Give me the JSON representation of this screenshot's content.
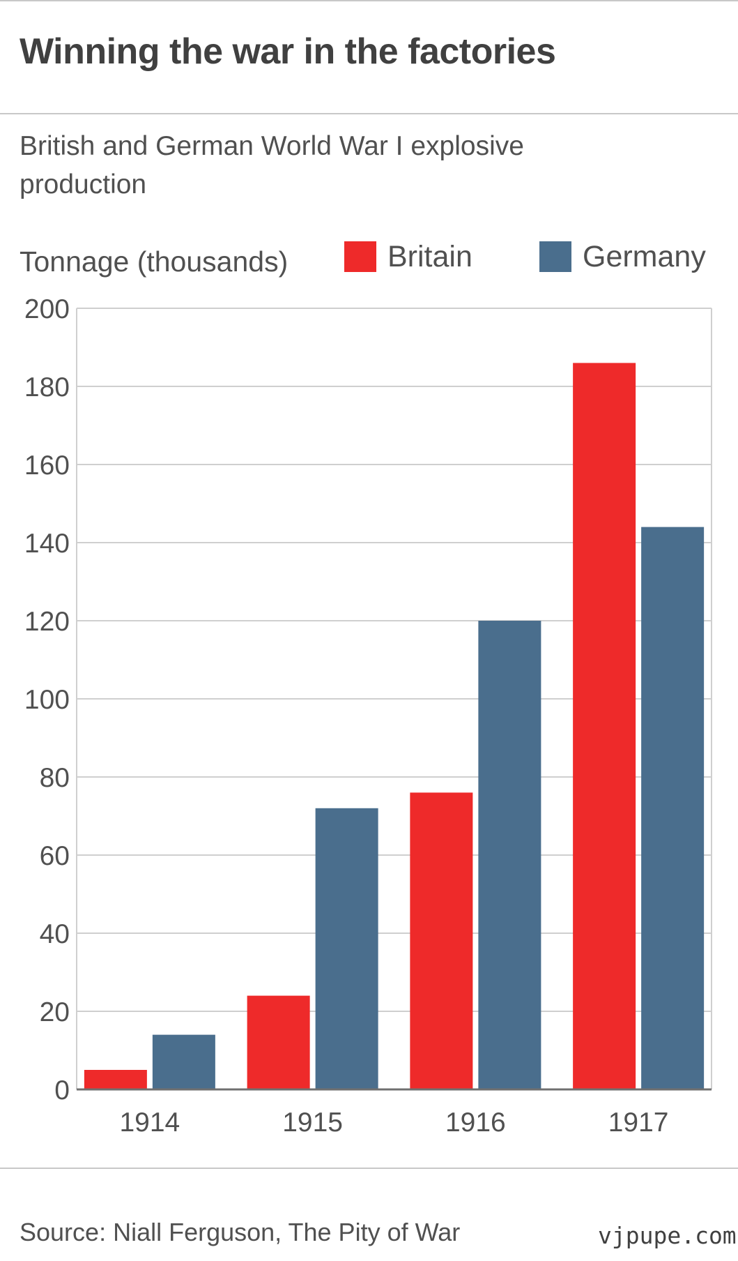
{
  "header": {
    "title": "Winning the war in the factories",
    "subtitle": "British and German World War I explosive production"
  },
  "chart_data": {
    "type": "bar",
    "ylabel": "Tonnage (thousands)",
    "xlabel": "",
    "categories": [
      "1914",
      "1915",
      "1916",
      "1917"
    ],
    "series": [
      {
        "name": "Britain",
        "values": [
          5,
          24,
          76,
          186
        ],
        "color": "#ee2a2a"
      },
      {
        "name": "Germany",
        "values": [
          14,
          72,
          120,
          144
        ],
        "color": "#4a6e8d"
      }
    ],
    "ylim": [
      0,
      200
    ],
    "yticks": [
      0,
      20,
      40,
      60,
      80,
      100,
      120,
      140,
      160,
      180,
      200
    ],
    "grid": true,
    "legend_position": "top"
  },
  "footer": {
    "source": "Source: Niall Ferguson, The Pity of War",
    "watermark": "vjpupe.com"
  }
}
